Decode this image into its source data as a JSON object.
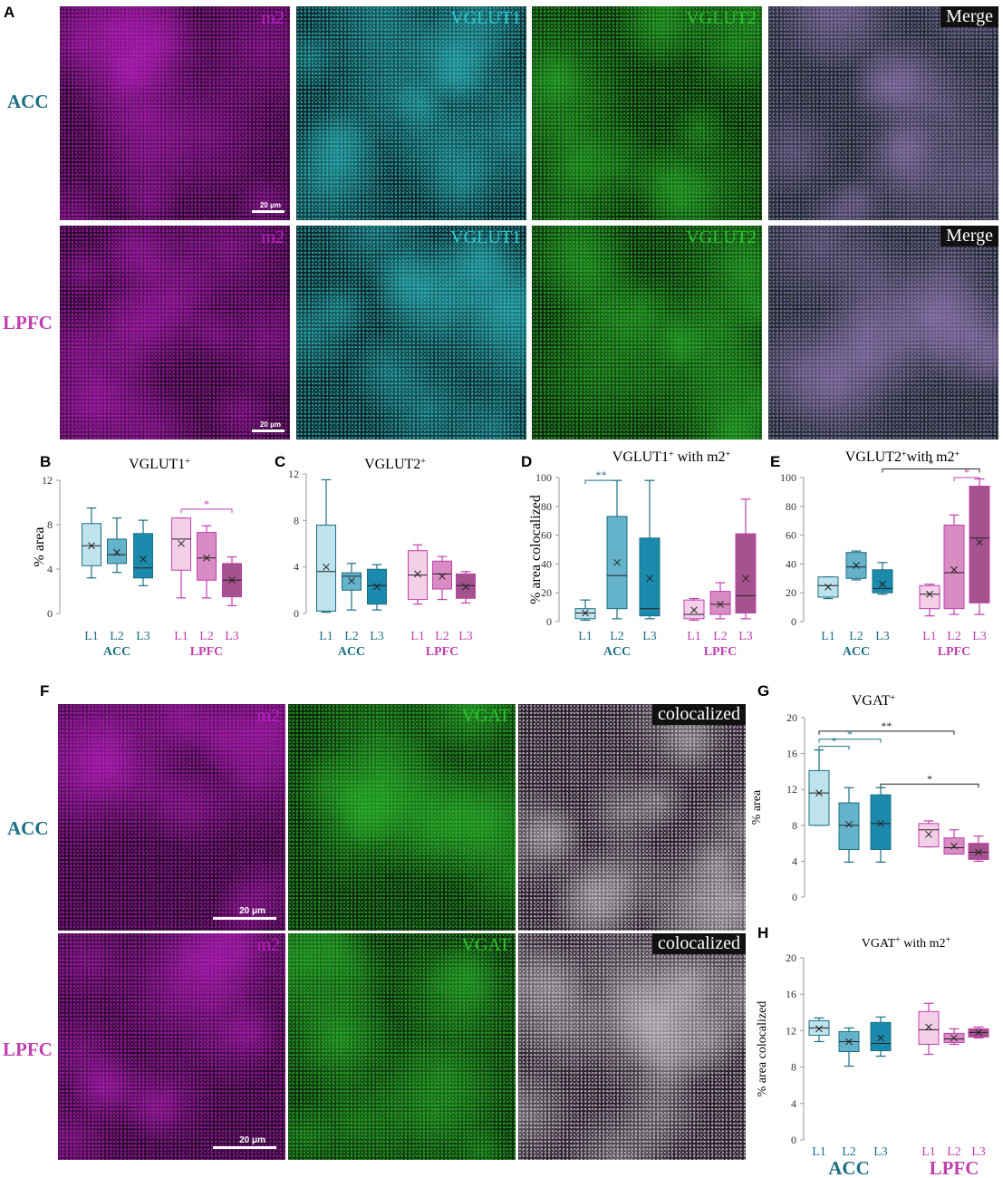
{
  "panel_letters": {
    "A": "A",
    "B": "B",
    "C": "C",
    "D": "D",
    "E": "E",
    "F": "F",
    "G": "G",
    "H": "H"
  },
  "region_labels": {
    "acc": "ACC",
    "lpfc": "LPFC"
  },
  "colors": {
    "acc": "#1b6f82",
    "lpfc": "#c03fae",
    "acc_fills": [
      "#bfe3ec",
      "#64b3cb",
      "#1c8aad"
    ],
    "lpfc_fills": [
      "#f3cfe8",
      "#d98cc3",
      "#a5538f"
    ],
    "m2": "#c020c8",
    "vglut1": "#31c9d0",
    "vglut2": "#2ec22e",
    "vgat": "#2ec22e"
  },
  "micrographs": {
    "top": {
      "channels": [
        "m2",
        "VGLUT1",
        "VGLUT2",
        "Merge"
      ],
      "scale_label": "20 μm"
    },
    "bottom": {
      "channels": [
        "m2",
        "VGAT",
        "colocalized"
      ],
      "scale_label": "20 μm"
    }
  },
  "chart_data": [
    {
      "id": "B",
      "type": "box",
      "title": "VGLUT1",
      "title_sup": "+",
      "ylabel": "% area",
      "ylim": [
        0,
        12
      ],
      "yticks": [
        0,
        4,
        8,
        12
      ],
      "categories": [
        "L1",
        "L2",
        "L3",
        "L1",
        "L2",
        "L3"
      ],
      "groups": [
        "ACC",
        "LPFC"
      ],
      "boxes": [
        {
          "min": 3.2,
          "q1": 4.3,
          "median": 6.1,
          "q3": 8.1,
          "max": 9.5,
          "mean": 6.1
        },
        {
          "min": 3.7,
          "q1": 4.5,
          "median": 5.3,
          "q3": 6.7,
          "max": 8.6,
          "mean": 5.5
        },
        {
          "min": 2.5,
          "q1": 3.2,
          "median": 4.1,
          "q3": 7.2,
          "max": 8.4,
          "mean": 4.9
        },
        {
          "min": 1.4,
          "q1": 3.9,
          "median": 6.7,
          "q3": 8.6,
          "max": 8.6,
          "mean": 6.3
        },
        {
          "min": 1.4,
          "q1": 3.0,
          "median": 5.0,
          "q3": 7.3,
          "max": 7.9,
          "mean": 5.0
        },
        {
          "min": 0.7,
          "q1": 1.5,
          "median": 3.0,
          "q3": 4.5,
          "max": 5.1,
          "mean": 3.0
        }
      ],
      "significance": [
        {
          "from": 3,
          "to": 5,
          "label": "*",
          "color": "lpfc",
          "y": 9.4
        }
      ]
    },
    {
      "id": "C",
      "type": "box",
      "title": "VGLUT2",
      "title_sup": "+",
      "ylabel": "",
      "ylim": [
        0,
        12
      ],
      "yticks": [
        0,
        4,
        8,
        12
      ],
      "categories": [
        "L1",
        "L2",
        "L3",
        "L1",
        "L2",
        "L3"
      ],
      "groups": [
        "ACC",
        "LPFC"
      ],
      "boxes": [
        {
          "min": 0.1,
          "q1": 0.2,
          "median": 3.6,
          "q3": 7.6,
          "max": 11.5,
          "mean": 4.0
        },
        {
          "min": 0.3,
          "q1": 2.0,
          "median": 3.2,
          "q3": 3.5,
          "max": 4.3,
          "mean": 2.8
        },
        {
          "min": 0.3,
          "q1": 0.8,
          "median": 2.4,
          "q3": 3.8,
          "max": 4.2,
          "mean": 2.3
        },
        {
          "min": 0.8,
          "q1": 1.2,
          "median": 3.3,
          "q3": 5.4,
          "max": 5.9,
          "mean": 3.4
        },
        {
          "min": 1.2,
          "q1": 2.1,
          "median": 3.4,
          "q3": 4.5,
          "max": 4.9,
          "mean": 3.2
        },
        {
          "min": 0.9,
          "q1": 1.3,
          "median": 2.4,
          "q3": 3.4,
          "max": 3.6,
          "mean": 2.3
        }
      ],
      "significance": []
    },
    {
      "id": "D",
      "type": "box",
      "title": "VGLUT1",
      "title_sup": "+",
      "title_rest": " with m2",
      "title_sup2": "+",
      "ylabel": "% area colocalized",
      "ylim": [
        0,
        100
      ],
      "yticks": [
        0,
        20,
        40,
        60,
        80,
        100
      ],
      "categories": [
        "L1",
        "L2",
        "L3",
        "L1",
        "L2",
        "L3"
      ],
      "groups": [
        "ACC",
        "LPFC"
      ],
      "boxes": [
        {
          "min": 1,
          "q1": 2,
          "median": 6,
          "q3": 9,
          "max": 15,
          "mean": 6
        },
        {
          "min": 2,
          "q1": 9,
          "median": 32,
          "q3": 73,
          "max": 98,
          "mean": 41
        },
        {
          "min": 2,
          "q1": 4,
          "median": 9,
          "q3": 58,
          "max": 98,
          "mean": 30
        },
        {
          "min": 1,
          "q1": 2,
          "median": 5,
          "q3": 15,
          "max": 16,
          "mean": 8
        },
        {
          "min": 2,
          "q1": 5,
          "median": 12,
          "q3": 21,
          "max": 27,
          "mean": 12
        },
        {
          "min": 2,
          "q1": 6,
          "median": 18,
          "q3": 61,
          "max": 85,
          "mean": 30
        }
      ],
      "significance": [
        {
          "from": 0,
          "to": 1,
          "label": "**",
          "color": "acc",
          "y": 98
        }
      ]
    },
    {
      "id": "E",
      "type": "box",
      "title": "VGLUT2",
      "title_sup": "+",
      "title_rest": "with m2",
      "title_sup2": "+",
      "ylabel": "",
      "ylim": [
        0,
        100
      ],
      "yticks": [
        0,
        20,
        40,
        60,
        80,
        100
      ],
      "categories": [
        "L1",
        "L2",
        "L3",
        "L1",
        "L2",
        "L3"
      ],
      "groups": [
        "ACC",
        "LPFC"
      ],
      "boxes": [
        {
          "min": 16,
          "q1": 17,
          "median": 25,
          "q3": 31,
          "max": 31,
          "mean": 24
        },
        {
          "min": 29,
          "q1": 30,
          "median": 38,
          "q3": 48,
          "max": 49,
          "mean": 39
        },
        {
          "min": 19,
          "q1": 20,
          "median": 23,
          "q3": 36,
          "max": 41,
          "mean": 26
        },
        {
          "min": 4,
          "q1": 9,
          "median": 19,
          "q3": 25,
          "max": 26,
          "mean": 19
        },
        {
          "min": 5,
          "q1": 9,
          "median": 34,
          "q3": 67,
          "max": 74,
          "mean": 36
        },
        {
          "min": 5,
          "q1": 13,
          "median": 58,
          "q3": 94,
          "max": 99,
          "mean": 55
        }
      ],
      "significance": [
        {
          "from": 2,
          "to": 5,
          "label": "*",
          "color": "black",
          "y": 106
        },
        {
          "from": 4,
          "to": 5,
          "label": "*",
          "color": "lpfc",
          "y": 100
        }
      ]
    },
    {
      "id": "G",
      "type": "box",
      "title": "VGAT",
      "title_sup": "+",
      "ylabel": "% area",
      "ylim": [
        0,
        20
      ],
      "yticks": [
        0,
        4,
        8,
        12,
        16,
        20
      ],
      "categories": [
        "L1",
        "L2",
        "L3",
        "L1",
        "L2",
        "L3"
      ],
      "groups": [
        "ACC",
        "LPFC"
      ],
      "boxes": [
        {
          "min": 8,
          "q1": 8,
          "median": 11.6,
          "q3": 14.1,
          "max": 16.4,
          "mean": 11.6
        },
        {
          "min": 3.9,
          "q1": 5.3,
          "median": 8,
          "q3": 10.5,
          "max": 12.2,
          "mean": 8.1
        },
        {
          "min": 3.9,
          "q1": 5.3,
          "median": 8.2,
          "q3": 11.4,
          "max": 12.2,
          "mean": 8.2
        },
        {
          "min": 5.6,
          "q1": 5.6,
          "median": 7.5,
          "q3": 8.2,
          "max": 8.5,
          "mean": 7.0
        },
        {
          "min": 4.8,
          "q1": 4.8,
          "median": 5.5,
          "q3": 6.6,
          "max": 7.5,
          "mean": 5.7
        },
        {
          "min": 4.0,
          "q1": 4.2,
          "median": 5.0,
          "q3": 6.0,
          "max": 6.8,
          "mean": 5.0
        }
      ],
      "significance": [
        {
          "from": 0,
          "to": 4,
          "label": "**",
          "color": "black",
          "y": 18.5
        },
        {
          "from": 0,
          "to": 2,
          "label": "*",
          "color": "acc",
          "y": 17.6
        },
        {
          "from": 0,
          "to": 1,
          "label": "*",
          "color": "acc",
          "y": 16.8
        },
        {
          "from": 2,
          "to": 5,
          "label": "*",
          "color": "black",
          "y": 12.6
        }
      ]
    },
    {
      "id": "H",
      "type": "box",
      "title": "VGAT",
      "title_sup": "+",
      "title_rest": " with m2",
      "title_sup2": "+",
      "ylabel": "% area colocalized",
      "ylim": [
        0,
        20
      ],
      "yticks": [
        0,
        4,
        8,
        12,
        16,
        20
      ],
      "categories": [
        "L1",
        "L2",
        "L3",
        "L1",
        "L2",
        "L3"
      ],
      "groups": [
        "ACC",
        "LPFC"
      ],
      "boxes": [
        {
          "min": 10.8,
          "q1": 11.5,
          "median": 12.3,
          "q3": 13.1,
          "max": 13.4,
          "mean": 12.2
        },
        {
          "min": 8.1,
          "q1": 9.7,
          "median": 10.8,
          "q3": 11.9,
          "max": 12.3,
          "mean": 10.8
        },
        {
          "min": 9.2,
          "q1": 9.8,
          "median": 10.6,
          "q3": 12.9,
          "max": 13.5,
          "mean": 11.2
        },
        {
          "min": 9.4,
          "q1": 10.5,
          "median": 12.1,
          "q3": 14.1,
          "max": 15.0,
          "mean": 12.4
        },
        {
          "min": 10.5,
          "q1": 10.7,
          "median": 11.1,
          "q3": 11.7,
          "max": 12.2,
          "mean": 11.2
        },
        {
          "min": 11.2,
          "q1": 11.3,
          "median": 11.8,
          "q3": 12.2,
          "max": 12.4,
          "mean": 11.8
        }
      ],
      "significance": []
    }
  ]
}
